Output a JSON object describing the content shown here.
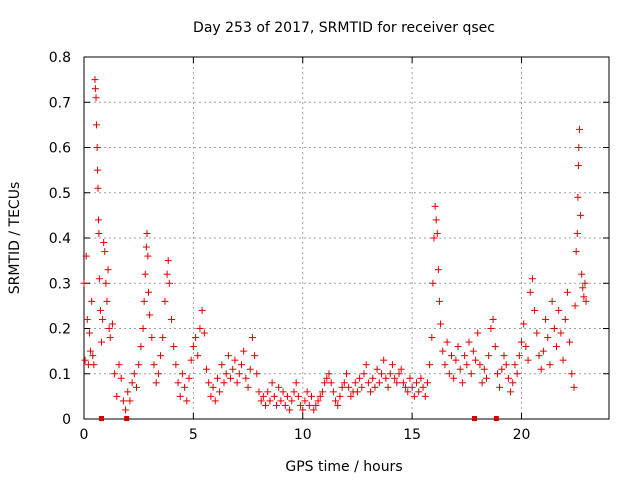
{
  "chart_data": {
    "type": "scatter",
    "title": "Day 253 of 2017, SRMTID for receiver qsec",
    "xlabel": "GPS time / hours",
    "ylabel": "SRMTID / TECUs",
    "xlim": [
      0,
      24
    ],
    "ylim": [
      0,
      0.8
    ],
    "xticks": [
      0,
      5,
      10,
      15,
      20
    ],
    "yticks": [
      0,
      0.1,
      0.2,
      0.3,
      0.4,
      0.5,
      0.6,
      0.7,
      0.8
    ],
    "xtick_labels": [
      "0",
      "5",
      "10",
      "15",
      "20"
    ],
    "ytick_labels": [
      "0",
      "0.1",
      "0.2",
      "0.3",
      "0.4",
      "0.5",
      "0.6",
      "0.7",
      "0.8"
    ],
    "grid": true,
    "marker": "+",
    "color": "#e00000",
    "series": [
      {
        "name": "SRMTID",
        "points": [
          [
            0.0,
            0.3
          ],
          [
            0.05,
            0.13
          ],
          [
            0.1,
            0.36
          ],
          [
            0.15,
            0.22
          ],
          [
            0.2,
            0.12
          ],
          [
            0.25,
            0.19
          ],
          [
            0.3,
            0.15
          ],
          [
            0.35,
            0.26
          ],
          [
            0.4,
            0.14
          ],
          [
            0.45,
            0.12
          ],
          [
            0.5,
            0.75
          ],
          [
            0.52,
            0.73
          ],
          [
            0.55,
            0.71
          ],
          [
            0.57,
            0.65
          ],
          [
            0.6,
            0.6
          ],
          [
            0.62,
            0.55
          ],
          [
            0.64,
            0.51
          ],
          [
            0.66,
            0.44
          ],
          [
            0.68,
            0.41
          ],
          [
            0.7,
            0.31
          ],
          [
            0.75,
            0.24
          ],
          [
            0.8,
            0.17
          ],
          [
            0.85,
            0.22
          ],
          [
            0.9,
            0.39
          ],
          [
            0.95,
            0.37
          ],
          [
            1.0,
            0.3
          ],
          [
            1.05,
            0.26
          ],
          [
            1.1,
            0.33
          ],
          [
            1.15,
            0.2
          ],
          [
            1.2,
            0.18
          ],
          [
            1.3,
            0.21
          ],
          [
            1.4,
            0.1
          ],
          [
            1.5,
            0.05
          ],
          [
            1.6,
            0.12
          ],
          [
            1.7,
            0.09
          ],
          [
            1.8,
            0.04
          ],
          [
            1.9,
            0.02
          ],
          [
            2.0,
            0.06
          ],
          [
            2.1,
            0.04
          ],
          [
            2.2,
            0.08
          ],
          [
            2.3,
            0.1
          ],
          [
            2.4,
            0.07
          ],
          [
            2.5,
            0.12
          ],
          [
            2.6,
            0.16
          ],
          [
            2.7,
            0.2
          ],
          [
            2.75,
            0.26
          ],
          [
            2.8,
            0.32
          ],
          [
            2.85,
            0.38
          ],
          [
            2.88,
            0.41
          ],
          [
            2.92,
            0.36
          ],
          [
            2.95,
            0.28
          ],
          [
            3.0,
            0.23
          ],
          [
            3.1,
            0.18
          ],
          [
            3.2,
            0.12
          ],
          [
            3.3,
            0.08
          ],
          [
            3.4,
            0.1
          ],
          [
            3.5,
            0.14
          ],
          [
            3.6,
            0.18
          ],
          [
            3.7,
            0.26
          ],
          [
            3.8,
            0.32
          ],
          [
            3.85,
            0.35
          ],
          [
            3.9,
            0.3
          ],
          [
            4.0,
            0.22
          ],
          [
            4.1,
            0.16
          ],
          [
            4.2,
            0.12
          ],
          [
            4.3,
            0.08
          ],
          [
            4.4,
            0.05
          ],
          [
            4.5,
            0.1
          ],
          [
            4.6,
            0.07
          ],
          [
            4.7,
            0.04
          ],
          [
            4.8,
            0.09
          ],
          [
            4.9,
            0.13
          ],
          [
            5.0,
            0.16
          ],
          [
            5.1,
            0.18
          ],
          [
            5.2,
            0.14
          ],
          [
            5.3,
            0.2
          ],
          [
            5.4,
            0.24
          ],
          [
            5.5,
            0.19
          ],
          [
            5.6,
            0.11
          ],
          [
            5.7,
            0.08
          ],
          [
            5.8,
            0.05
          ],
          [
            5.9,
            0.07
          ],
          [
            6.0,
            0.04
          ],
          [
            6.1,
            0.09
          ],
          [
            6.2,
            0.06
          ],
          [
            6.3,
            0.12
          ],
          [
            6.4,
            0.08
          ],
          [
            6.5,
            0.1
          ],
          [
            6.6,
            0.14
          ],
          [
            6.7,
            0.09
          ],
          [
            6.8,
            0.11
          ],
          [
            6.9,
            0.13
          ],
          [
            7.0,
            0.08
          ],
          [
            7.1,
            0.1
          ],
          [
            7.2,
            0.12
          ],
          [
            7.3,
            0.15
          ],
          [
            7.4,
            0.09
          ],
          [
            7.5,
            0.07
          ],
          [
            7.6,
            0.11
          ],
          [
            7.7,
            0.18
          ],
          [
            7.8,
            0.14
          ],
          [
            7.9,
            0.1
          ],
          [
            8.0,
            0.06
          ],
          [
            8.1,
            0.04
          ],
          [
            8.2,
            0.05
          ],
          [
            8.3,
            0.03
          ],
          [
            8.4,
            0.06
          ],
          [
            8.5,
            0.04
          ],
          [
            8.6,
            0.08
          ],
          [
            8.7,
            0.05
          ],
          [
            8.8,
            0.03
          ],
          [
            8.9,
            0.07
          ],
          [
            9.0,
            0.04
          ],
          [
            9.1,
            0.06
          ],
          [
            9.2,
            0.03
          ],
          [
            9.3,
            0.05
          ],
          [
            9.4,
            0.02
          ],
          [
            9.5,
            0.04
          ],
          [
            9.6,
            0.06
          ],
          [
            9.7,
            0.08
          ],
          [
            9.8,
            0.05
          ],
          [
            9.9,
            0.03
          ],
          [
            10.0,
            0.02
          ],
          [
            10.1,
            0.04
          ],
          [
            10.2,
            0.06
          ],
          [
            10.3,
            0.03
          ],
          [
            10.4,
            0.05
          ],
          [
            10.5,
            0.02
          ],
          [
            10.6,
            0.03
          ],
          [
            10.7,
            0.04
          ],
          [
            10.8,
            0.05
          ],
          [
            10.9,
            0.06
          ],
          [
            11.0,
            0.08
          ],
          [
            11.1,
            0.09
          ],
          [
            11.2,
            0.1
          ],
          [
            11.3,
            0.08
          ],
          [
            11.4,
            0.06
          ],
          [
            11.5,
            0.04
          ],
          [
            11.6,
            0.03
          ],
          [
            11.7,
            0.05
          ],
          [
            11.8,
            0.07
          ],
          [
            11.9,
            0.08
          ],
          [
            12.0,
            0.1
          ],
          [
            12.1,
            0.07
          ],
          [
            12.2,
            0.05
          ],
          [
            12.3,
            0.06
          ],
          [
            12.4,
            0.08
          ],
          [
            12.5,
            0.06
          ],
          [
            12.6,
            0.09
          ],
          [
            12.7,
            0.07
          ],
          [
            12.8,
            0.1
          ],
          [
            12.9,
            0.12
          ],
          [
            13.0,
            0.08
          ],
          [
            13.1,
            0.06
          ],
          [
            13.2,
            0.09
          ],
          [
            13.3,
            0.07
          ],
          [
            13.4,
            0.11
          ],
          [
            13.5,
            0.08
          ],
          [
            13.6,
            0.1
          ],
          [
            13.7,
            0.13
          ],
          [
            13.8,
            0.09
          ],
          [
            13.9,
            0.07
          ],
          [
            14.0,
            0.1
          ],
          [
            14.1,
            0.12
          ],
          [
            14.2,
            0.09
          ],
          [
            14.3,
            0.08
          ],
          [
            14.4,
            0.1
          ],
          [
            14.5,
            0.11
          ],
          [
            14.6,
            0.08
          ],
          [
            14.7,
            0.07
          ],
          [
            14.8,
            0.06
          ],
          [
            14.9,
            0.09
          ],
          [
            15.0,
            0.07
          ],
          [
            15.1,
            0.05
          ],
          [
            15.2,
            0.08
          ],
          [
            15.3,
            0.06
          ],
          [
            15.4,
            0.09
          ],
          [
            15.5,
            0.07
          ],
          [
            15.6,
            0.05
          ],
          [
            15.7,
            0.08
          ],
          [
            15.8,
            0.12
          ],
          [
            15.9,
            0.18
          ],
          [
            15.95,
            0.3
          ],
          [
            16.0,
            0.4
          ],
          [
            16.05,
            0.47
          ],
          [
            16.1,
            0.44
          ],
          [
            16.15,
            0.41
          ],
          [
            16.2,
            0.33
          ],
          [
            16.25,
            0.26
          ],
          [
            16.3,
            0.21
          ],
          [
            16.4,
            0.15
          ],
          [
            16.5,
            0.12
          ],
          [
            16.6,
            0.17
          ],
          [
            16.7,
            0.1
          ],
          [
            16.8,
            0.14
          ],
          [
            16.9,
            0.09
          ],
          [
            17.0,
            0.13
          ],
          [
            17.1,
            0.16
          ],
          [
            17.2,
            0.11
          ],
          [
            17.3,
            0.08
          ],
          [
            17.4,
            0.14
          ],
          [
            17.5,
            0.12
          ],
          [
            17.6,
            0.17
          ],
          [
            17.7,
            0.1
          ],
          [
            17.8,
            0.15
          ],
          [
            17.9,
            0.13
          ],
          [
            18.0,
            0.19
          ],
          [
            18.1,
            0.12
          ],
          [
            18.2,
            0.08
          ],
          [
            18.3,
            0.11
          ],
          [
            18.4,
            0.09
          ],
          [
            18.5,
            0.14
          ],
          [
            18.6,
            0.2
          ],
          [
            18.7,
            0.22
          ],
          [
            18.8,
            0.16
          ],
          [
            18.9,
            0.1
          ],
          [
            19.0,
            0.07
          ],
          [
            19.1,
            0.11
          ],
          [
            19.2,
            0.14
          ],
          [
            19.3,
            0.12
          ],
          [
            19.4,
            0.09
          ],
          [
            19.5,
            0.06
          ],
          [
            19.6,
            0.08
          ],
          [
            19.7,
            0.12
          ],
          [
            19.8,
            0.1
          ],
          [
            19.9,
            0.14
          ],
          [
            20.0,
            0.17
          ],
          [
            20.1,
            0.21
          ],
          [
            20.2,
            0.16
          ],
          [
            20.3,
            0.13
          ],
          [
            20.4,
            0.28
          ],
          [
            20.5,
            0.31
          ],
          [
            20.6,
            0.24
          ],
          [
            20.7,
            0.19
          ],
          [
            20.8,
            0.14
          ],
          [
            20.9,
            0.11
          ],
          [
            21.0,
            0.15
          ],
          [
            21.1,
            0.22
          ],
          [
            21.2,
            0.18
          ],
          [
            21.3,
            0.12
          ],
          [
            21.4,
            0.26
          ],
          [
            21.5,
            0.2
          ],
          [
            21.6,
            0.16
          ],
          [
            21.7,
            0.24
          ],
          [
            21.8,
            0.19
          ],
          [
            21.9,
            0.13
          ],
          [
            22.0,
            0.22
          ],
          [
            22.1,
            0.28
          ],
          [
            22.2,
            0.17
          ],
          [
            22.3,
            0.1
          ],
          [
            22.4,
            0.07
          ],
          [
            22.45,
            0.25
          ],
          [
            22.5,
            0.37
          ],
          [
            22.55,
            0.41
          ],
          [
            22.58,
            0.49
          ],
          [
            22.6,
            0.56
          ],
          [
            22.62,
            0.6
          ],
          [
            22.65,
            0.64
          ],
          [
            22.7,
            0.45
          ],
          [
            22.75,
            0.32
          ],
          [
            22.8,
            0.29
          ],
          [
            22.85,
            0.27
          ],
          [
            22.9,
            0.3
          ],
          [
            22.95,
            0.26
          ]
        ]
      }
    ],
    "gaps_at_zero": [
      0.8,
      1.95,
      17.85,
      18.85
    ]
  }
}
